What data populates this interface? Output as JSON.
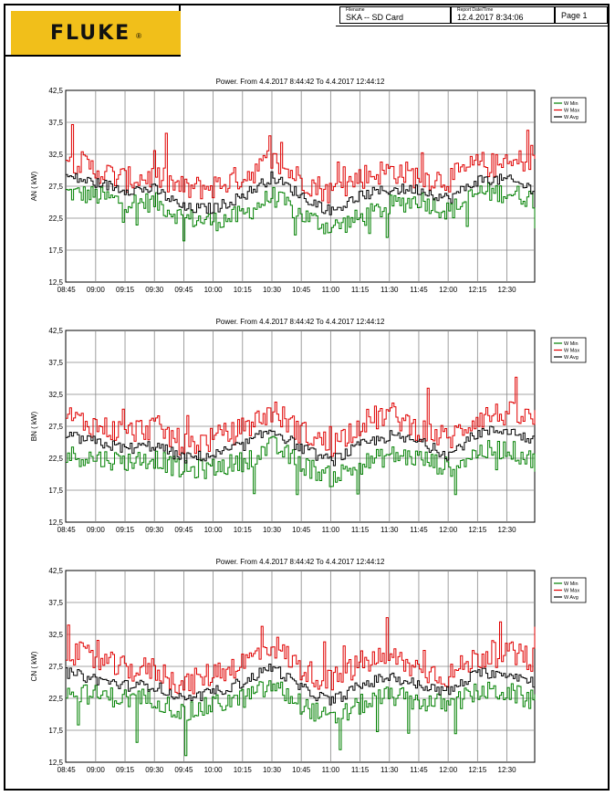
{
  "brand": {
    "name": "FLUKE",
    "reg_mark": "®",
    "color": "#f1bf1a"
  },
  "header": {
    "filename_caption": "Filename",
    "filename": "SKA    -- SD Card",
    "report_caption": "Report Date/Time",
    "report_datetime": "12.4.2017 8:34:06",
    "page": "Page 1"
  },
  "chart_data": [
    {
      "type": "line",
      "title": "Power. From 4.4.2017 8:44:42 To 4.4.2017 12:44:12",
      "ylabel": "AN ( kW)",
      "ylim": [
        12.5,
        42.5
      ],
      "yticks": [
        "12,5",
        "17,5",
        "22,5",
        "27,5",
        "32,5",
        "37,5",
        "42,5"
      ],
      "xlim": [
        "08:44:42",
        "12:44:12"
      ],
      "xticks": [
        "08:45",
        "09:00",
        "09:15",
        "09:30",
        "09:45",
        "10:00",
        "10:15",
        "10:30",
        "10:45",
        "11:00",
        "11:15",
        "11:30",
        "11:45",
        "12:00",
        "12:15",
        "12:30"
      ],
      "grid": true,
      "legend_position": "right",
      "x": [
        "08:45",
        "09:00",
        "09:15",
        "09:30",
        "09:45",
        "10:00",
        "10:15",
        "10:30",
        "10:45",
        "11:00",
        "11:15",
        "11:30",
        "11:45",
        "12:00",
        "12:15",
        "12:30",
        "12:44"
      ],
      "series": [
        {
          "name": "W Min",
          "color": "#008000",
          "values": [
            26.5,
            26.0,
            25.0,
            25.0,
            22.5,
            22.0,
            23.0,
            26.0,
            23.0,
            21.0,
            22.5,
            24.5,
            25.5,
            23.5,
            26.5,
            26.5,
            25.5
          ]
        },
        {
          "name": "W Max",
          "color": "#e00000",
          "values": [
            32.0,
            30.0,
            28.5,
            29.0,
            27.0,
            27.5,
            29.0,
            31.5,
            28.5,
            26.5,
            29.0,
            30.0,
            29.0,
            28.5,
            31.0,
            30.5,
            32.5
          ]
        },
        {
          "name": "W Avg",
          "color": "#000000",
          "values": [
            29.0,
            28.0,
            27.0,
            27.0,
            24.0,
            24.0,
            26.0,
            29.0,
            26.0,
            23.5,
            26.0,
            27.0,
            27.0,
            25.5,
            28.5,
            28.5,
            27.0
          ]
        }
      ]
    },
    {
      "type": "line",
      "title": "Power. From 4.4.2017 8:44:42 To 4.4.2017 12:44:12",
      "ylabel": "BN ( kW)",
      "ylim": [
        12.5,
        42.5
      ],
      "yticks": [
        "12,5",
        "17,5",
        "22,5",
        "27,5",
        "32,5",
        "37,5",
        "42,5"
      ],
      "xlim": [
        "08:44:42",
        "12:44:12"
      ],
      "xticks": [
        "08:45",
        "09:00",
        "09:15",
        "09:30",
        "09:45",
        "10:00",
        "10:15",
        "10:30",
        "10:45",
        "11:00",
        "11:15",
        "11:30",
        "11:45",
        "12:00",
        "12:15",
        "12:30"
      ],
      "grid": true,
      "legend_position": "right",
      "x": [
        "08:45",
        "09:00",
        "09:15",
        "09:30",
        "09:45",
        "10:00",
        "10:15",
        "10:30",
        "10:45",
        "11:00",
        "11:15",
        "11:30",
        "11:45",
        "12:00",
        "12:15",
        "12:30",
        "12:44"
      ],
      "series": [
        {
          "name": "W Min",
          "color": "#008000",
          "values": [
            23.0,
            22.5,
            22.0,
            22.5,
            20.5,
            21.0,
            22.0,
            24.5,
            21.5,
            19.5,
            21.5,
            23.0,
            22.5,
            21.0,
            23.5,
            24.0,
            22.0
          ]
        },
        {
          "name": "W Max",
          "color": "#e00000",
          "values": [
            29.0,
            27.5,
            26.5,
            27.5,
            24.5,
            25.5,
            27.0,
            30.0,
            26.5,
            24.5,
            28.0,
            29.5,
            27.0,
            25.5,
            29.0,
            29.5,
            28.5
          ]
        },
        {
          "name": "W Avg",
          "color": "#000000",
          "values": [
            26.0,
            25.0,
            24.0,
            24.5,
            22.5,
            23.0,
            24.5,
            27.0,
            24.0,
            22.0,
            24.5,
            26.0,
            25.0,
            23.0,
            26.5,
            27.0,
            25.0
          ]
        }
      ]
    },
    {
      "type": "line",
      "title": "Power. From 4.4.2017 8:44:42 To 4.4.2017 12:44:12",
      "ylabel": "CN ( kW)",
      "ylim": [
        12.5,
        42.5
      ],
      "yticks": [
        "12,5",
        "17,5",
        "22,5",
        "27,5",
        "32,5",
        "37,5",
        "42,5"
      ],
      "xlim": [
        "08:44:42",
        "12:44:12"
      ],
      "xticks": [
        "08:45",
        "09:00",
        "09:15",
        "09:30",
        "09:45",
        "10:00",
        "10:15",
        "10:30",
        "10:45",
        "11:00",
        "11:15",
        "11:30",
        "11:45",
        "12:00",
        "12:15",
        "12:30"
      ],
      "grid": true,
      "legend_position": "right",
      "x": [
        "08:45",
        "09:00",
        "09:15",
        "09:30",
        "09:45",
        "10:00",
        "10:15",
        "10:30",
        "10:45",
        "11:00",
        "11:15",
        "11:30",
        "11:45",
        "12:00",
        "12:15",
        "12:30",
        "12:44"
      ],
      "series": [
        {
          "name": "W Min",
          "color": "#008000",
          "values": [
            23.5,
            23.0,
            22.5,
            22.5,
            20.0,
            21.5,
            22.5,
            24.5,
            21.5,
            19.0,
            21.5,
            23.0,
            22.0,
            21.5,
            23.5,
            23.5,
            22.0
          ]
        },
        {
          "name": "W Max",
          "color": "#e00000",
          "values": [
            30.0,
            28.5,
            27.0,
            27.0,
            24.5,
            26.5,
            28.0,
            31.0,
            27.0,
            25.0,
            28.0,
            29.0,
            27.0,
            26.0,
            29.0,
            29.5,
            28.5
          ]
        },
        {
          "name": "W Avg",
          "color": "#000000",
          "values": [
            26.5,
            25.5,
            24.5,
            24.5,
            22.0,
            23.5,
            25.0,
            27.5,
            24.0,
            22.0,
            24.5,
            26.0,
            24.5,
            23.5,
            26.5,
            26.5,
            25.0
          ]
        }
      ]
    }
  ]
}
